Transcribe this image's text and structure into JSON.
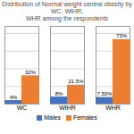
{
  "chart_data": {
    "type": "bar",
    "title": "Distribution of Normal weight central obesity by WC, WtHR,\nWHR among the respondents",
    "categories": [
      "WC",
      "WtHR",
      "WHR"
    ],
    "series": [
      {
        "name": "Males",
        "color": "#4472C4",
        "values": [
          4,
          8,
          7.5
        ],
        "value_labels": [
          "4%",
          "8%",
          "7.50%"
        ]
      },
      {
        "name": "Females",
        "color": "#ED7D31",
        "values": [
          32,
          21.5,
          73
        ],
        "value_labels": [
          "32%",
          "21.5%",
          "73%"
        ]
      }
    ],
    "ylim": [
      0,
      88
    ],
    "yticks": [
      0,
      20,
      40,
      60,
      80
    ],
    "grid": true,
    "data_labels": true,
    "tick_labels": "x",
    "legend": "bottom"
  }
}
